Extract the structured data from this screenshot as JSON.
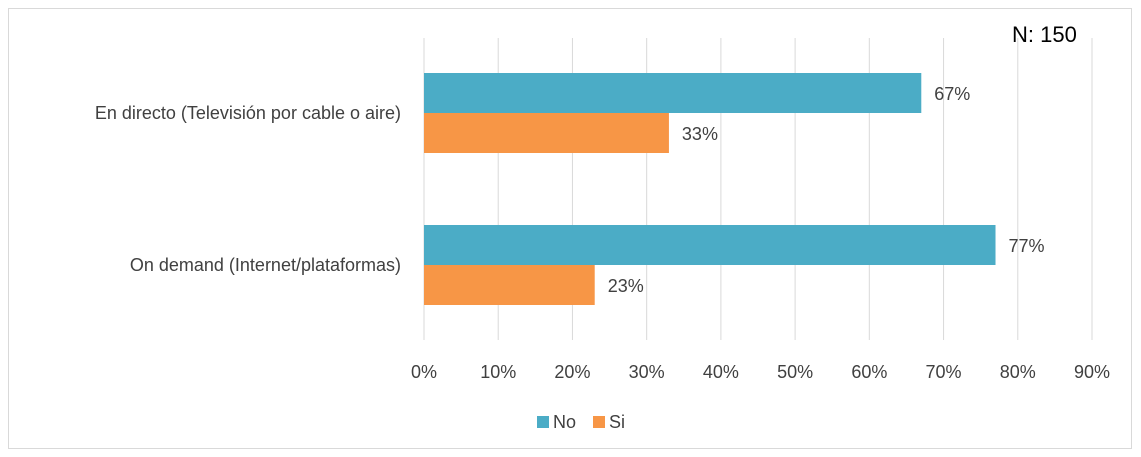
{
  "annotation": "N: 150",
  "colors": {
    "No": "#4bacc6",
    "Si": "#f79646",
    "grid": "#d9d9d9",
    "text": "#404040"
  },
  "chart_data": {
    "type": "bar",
    "orientation": "horizontal",
    "title": "",
    "xlabel": "",
    "ylabel": "",
    "categories": [
      "En directo (Televisión por cable o aire)",
      "On demand (Internet/plataformas)"
    ],
    "series": [
      {
        "name": "No",
        "values": [
          67,
          77
        ],
        "labels": [
          "67%",
          "77%"
        ]
      },
      {
        "name": "Si",
        "values": [
          33,
          23
        ],
        "labels": [
          "33%",
          "23%"
        ]
      }
    ],
    "xlim": [
      0,
      90
    ],
    "xticks": [
      "0%",
      "10%",
      "20%",
      "30%",
      "40%",
      "50%",
      "60%",
      "70%",
      "80%",
      "90%"
    ],
    "grid": true,
    "legend": "bottom"
  }
}
